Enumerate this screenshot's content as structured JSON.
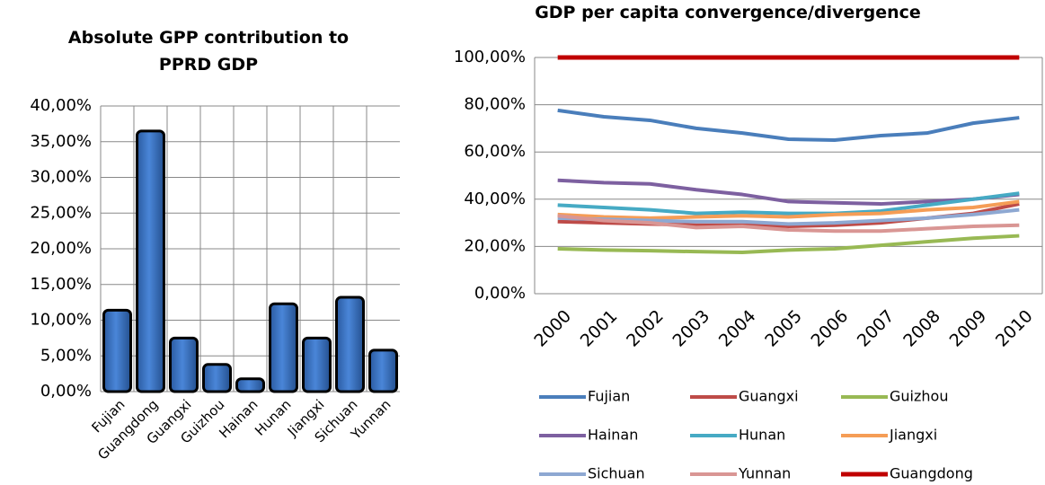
{
  "chart_data": [
    {
      "type": "bar",
      "title": "Absolute GPP contribution to PPRD GDP",
      "categories": [
        "Fujian",
        "Guangdong",
        "Guangxi",
        "Guizhou",
        "Hainan",
        "Hunan",
        "Jiangxi",
        "Sichuan",
        "Yunnan"
      ],
      "values": [
        11.4,
        36.5,
        7.5,
        3.8,
        1.8,
        12.3,
        7.5,
        13.2,
        5.8
      ],
      "color": "#3a70c0",
      "ylim": [
        0,
        40
      ],
      "yticks": [
        {
          "value": 0,
          "label": "0,00%"
        },
        {
          "value": 5,
          "label": "5,00%"
        },
        {
          "value": 10,
          "label": "10,00%"
        },
        {
          "value": 15,
          "label": "15,00%"
        },
        {
          "value": 20,
          "label": "20,00%"
        },
        {
          "value": 25,
          "label": "25,00%"
        },
        {
          "value": 30,
          "label": "30,00%"
        },
        {
          "value": 35,
          "label": "35,00%"
        },
        {
          "value": 40,
          "label": "40,00%"
        }
      ],
      "grid": true
    },
    {
      "type": "line",
      "title": "GDP per capita convergence/divergence",
      "categories": [
        "2000",
        "2001",
        "2002",
        "2003",
        "2004",
        "2005",
        "2006",
        "2007",
        "2008",
        "2009",
        "2010"
      ],
      "series": [
        {
          "name": "Fujian",
          "color": "#4a7ebb",
          "values": [
            77.6,
            74.9,
            73.4,
            70,
            68,
            65.4,
            65,
            66.9,
            68,
            72.2,
            74.5
          ]
        },
        {
          "name": "Guangxi",
          "color": "#be4b48",
          "values": [
            30.5,
            30,
            29.5,
            29,
            29,
            28.5,
            29,
            30,
            32,
            34,
            38
          ]
        },
        {
          "name": "Guizhou",
          "color": "#98b954",
          "values": [
            19,
            18.5,
            18.2,
            17.8,
            17.5,
            18.5,
            19,
            20.5,
            22,
            23.5,
            24.5
          ]
        },
        {
          "name": "Hainan",
          "color": "#7d60a0",
          "values": [
            48,
            47,
            46.5,
            44,
            42,
            39,
            38.5,
            38,
            39,
            40,
            42
          ]
        },
        {
          "name": "Hunan",
          "color": "#46aac4",
          "values": [
            37.5,
            36.5,
            35.5,
            34,
            34.5,
            34,
            34,
            35,
            37.5,
            40,
            42.5
          ]
        },
        {
          "name": "Jiangxi",
          "color": "#f59d56",
          "values": [
            33.5,
            32.5,
            32,
            32.5,
            33,
            32.5,
            33.5,
            34,
            35.5,
            36.5,
            39
          ]
        },
        {
          "name": "Sichuan",
          "color": "#8ea8d2",
          "values": [
            32,
            31.5,
            31,
            30.5,
            30.5,
            29.5,
            30,
            31,
            32,
            33.5,
            35.5
          ]
        },
        {
          "name": "Yunnan",
          "color": "#d99694",
          "values": [
            33,
            31,
            30,
            28,
            28.5,
            27,
            26.5,
            26.5,
            27.5,
            28.5,
            29
          ]
        },
        {
          "name": "Guangdong",
          "color": "#c00000",
          "values": [
            100,
            100,
            100,
            100,
            100,
            100,
            100,
            100,
            100,
            100,
            100
          ]
        }
      ],
      "ylim": [
        0,
        100
      ],
      "yticks": [
        {
          "value": 0,
          "label": "0,00%"
        },
        {
          "value": 20,
          "label": "20,00%"
        },
        {
          "value": 40,
          "label": "40,00%"
        },
        {
          "value": 60,
          "label": "60,00%"
        },
        {
          "value": 80,
          "label": "80,00%"
        },
        {
          "value": 100,
          "label": "100,00%"
        }
      ],
      "grid": true
    }
  ]
}
